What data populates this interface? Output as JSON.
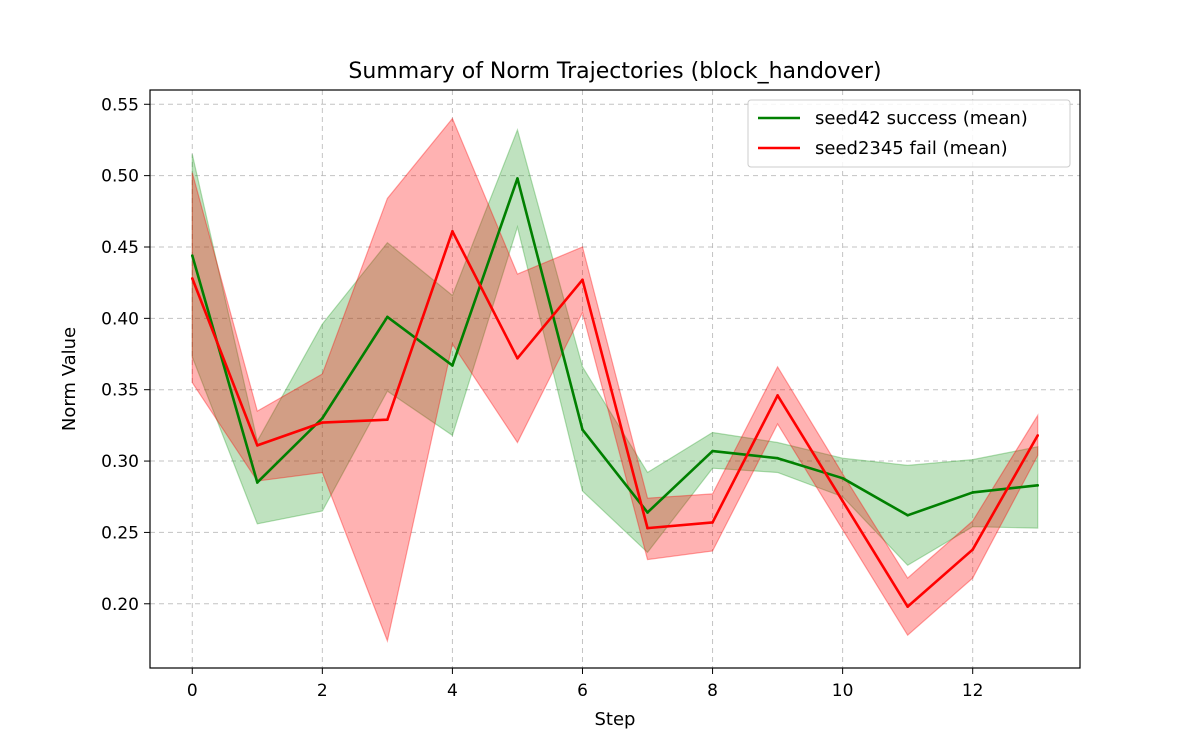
{
  "chart_data": {
    "type": "line",
    "title": "Summary of Norm Trajectories (block_handover)",
    "xlabel": "Step",
    "ylabel": "Norm Value",
    "xlim": [
      -0.65,
      13.65
    ],
    "ylim": [
      0.155,
      0.56
    ],
    "xticks": [
      0,
      2,
      4,
      6,
      8,
      10,
      12
    ],
    "yticks": [
      0.2,
      0.25,
      0.3,
      0.35,
      0.4,
      0.45,
      0.5,
      0.55
    ],
    "grid": true,
    "legend_position": "top-right",
    "x": [
      0,
      1,
      2,
      3,
      4,
      5,
      6,
      7,
      8,
      9,
      10,
      11,
      12,
      13
    ],
    "series": [
      {
        "name": "seed42 success (mean)",
        "color": "#008000",
        "band_color": "#2ca02c",
        "mean": [
          0.444,
          0.285,
          0.33,
          0.401,
          0.367,
          0.498,
          0.322,
          0.264,
          0.307,
          0.302,
          0.288,
          0.262,
          0.278,
          0.283
        ],
        "upper": [
          0.515,
          0.314,
          0.396,
          0.453,
          0.416,
          0.532,
          0.366,
          0.292,
          0.32,
          0.313,
          0.302,
          0.297,
          0.301,
          0.31
        ],
        "lower": [
          0.373,
          0.256,
          0.265,
          0.349,
          0.318,
          0.464,
          0.279,
          0.236,
          0.295,
          0.292,
          0.275,
          0.227,
          0.254,
          0.253
        ]
      },
      {
        "name": "seed2345 fail (mean)",
        "color": "#ff0000",
        "band_color": "#ff0000",
        "mean": [
          0.428,
          0.311,
          0.327,
          0.329,
          0.461,
          0.372,
          0.427,
          0.253,
          0.257,
          0.346,
          0.272,
          0.198,
          0.238,
          0.318
        ],
        "upper": [
          0.502,
          0.335,
          0.361,
          0.484,
          0.54,
          0.431,
          0.45,
          0.274,
          0.277,
          0.366,
          0.291,
          0.218,
          0.258,
          0.332
        ],
        "lower": [
          0.355,
          0.286,
          0.292,
          0.174,
          0.382,
          0.313,
          0.404,
          0.231,
          0.237,
          0.326,
          0.252,
          0.178,
          0.218,
          0.304
        ]
      }
    ]
  }
}
